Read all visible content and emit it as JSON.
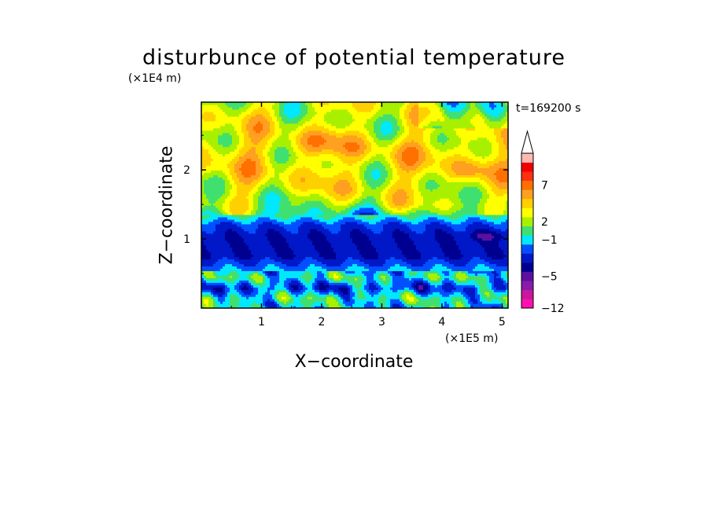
{
  "chart_data": {
    "type": "heatmap",
    "title": "disturbunce of potential temperature",
    "time_label": "t=169200 s",
    "xlabel": "X−coordinate",
    "ylabel": "Z−coordinate",
    "x_unit": "(×1E5 m)",
    "y_unit": "(×1E4 m)",
    "xlim": [
      0,
      5.1
    ],
    "ylim": [
      0,
      2.98
    ],
    "x_ticks": [
      "1",
      "2",
      "3",
      "4",
      "5"
    ],
    "y_ticks": [
      "1",
      "2"
    ],
    "colorbar": {
      "tick_labels": [
        "7",
        "2",
        "−1",
        "−5",
        "−12"
      ],
      "colors": [
        "#ff10b0",
        "#c8189c",
        "#8a1aa8",
        "#5a10a0",
        "#000090",
        "#0018c8",
        "#0050ff",
        "#00e8ff",
        "#40e070",
        "#a8f000",
        "#ffff00",
        "#ffd000",
        "#ffa020",
        "#ff7000",
        "#ff3010",
        "#f00000",
        "#ffb8b0"
      ]
    },
    "field_profile_by_z": [
      {
        "z": 0.0,
        "value": -3
      },
      {
        "z": 0.15,
        "value": -2
      },
      {
        "z": 0.3,
        "value": -5
      },
      {
        "z": 0.45,
        "value": -2
      },
      {
        "z": 0.6,
        "value": -4
      },
      {
        "z": 0.75,
        "value": -6
      },
      {
        "z": 0.9,
        "value": -6
      },
      {
        "z": 1.05,
        "value": -6
      },
      {
        "z": 1.2,
        "value": -5
      },
      {
        "z": 1.35,
        "value": -2
      },
      {
        "z": 1.5,
        "value": 0
      },
      {
        "z": 1.7,
        "value": 1
      },
      {
        "z": 2.0,
        "value": 1.5
      },
      {
        "z": 2.3,
        "value": 2
      },
      {
        "z": 2.6,
        "value": 1
      },
      {
        "z": 2.98,
        "value": 0.5
      }
    ]
  }
}
